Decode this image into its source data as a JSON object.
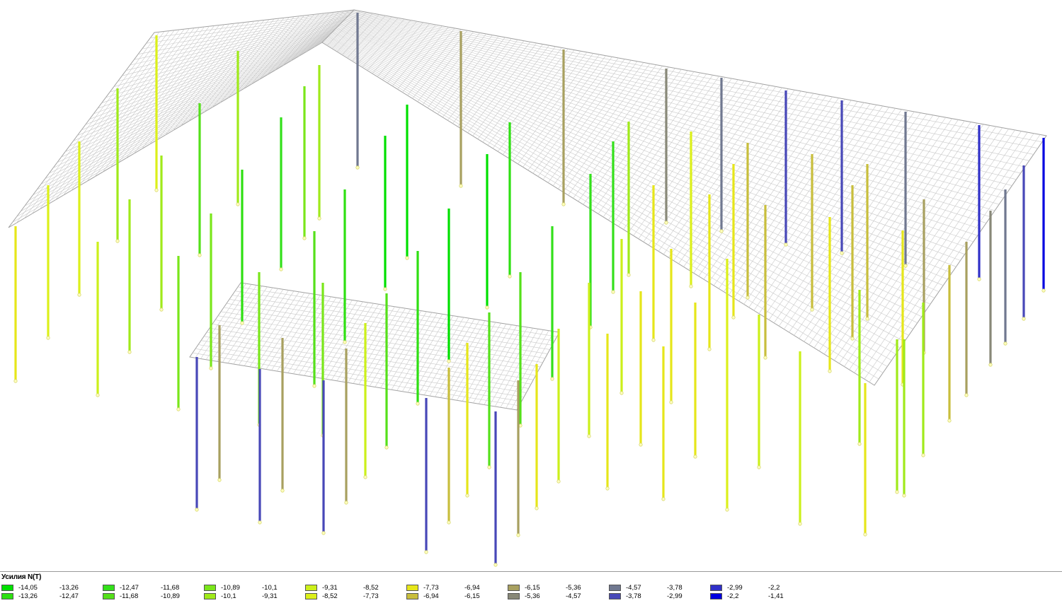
{
  "legend": {
    "title": "Усилия  N(Т)",
    "rows": [
      [
        {
          "color": "#00e000",
          "from": "-14,05",
          "to": "-13,26"
        },
        {
          "color": "#33e01a",
          "from": "-12,47",
          "to": "-11,68"
        },
        {
          "color": "#7ae61a",
          "from": "-10,89",
          "to": "-10,1"
        },
        {
          "color": "#ccf01a",
          "from": "-9,31",
          "to": "-8,52"
        },
        {
          "color": "#e6e61a",
          "from": "-7,73",
          "to": "-6,94"
        },
        {
          "color": "#a8a060",
          "from": "-6,15",
          "to": "-5,36"
        },
        {
          "color": "#707890",
          "from": "-4,57",
          "to": "-3,78"
        },
        {
          "color": "#3030c8",
          "from": "-2,99",
          "to": "-2,2"
        }
      ],
      [
        {
          "color": "#2ee012",
          "from": "-13,26",
          "to": "-12,47"
        },
        {
          "color": "#55e01a",
          "from": "-11,68",
          "to": "-10,89"
        },
        {
          "color": "#a0ea1a",
          "from": "-10,1",
          "to": "-9,31"
        },
        {
          "color": "#dcf01a",
          "from": "-8,52",
          "to": "-7,73"
        },
        {
          "color": "#c8be3c",
          "from": "-6,94",
          "to": "-6,15"
        },
        {
          "color": "#888878",
          "from": "-5,36",
          "to": "-4,57"
        },
        {
          "color": "#4848b8",
          "from": "-3,78",
          "to": "-2,99"
        },
        {
          "color": "#0000e0",
          "from": "-2,2",
          "to": "-1,41"
        }
      ]
    ]
  },
  "colors": {
    "grid": "#c8c8c8",
    "palette": [
      "#00e000",
      "#2ee012",
      "#33e01a",
      "#55e01a",
      "#7ae61a",
      "#a0ea1a",
      "#ccf01a",
      "#dcf01a",
      "#e6e61a",
      "#c8be3c",
      "#a8a060",
      "#888878",
      "#707890",
      "#4848b8",
      "#3030c8",
      "#0000e0"
    ]
  }
}
